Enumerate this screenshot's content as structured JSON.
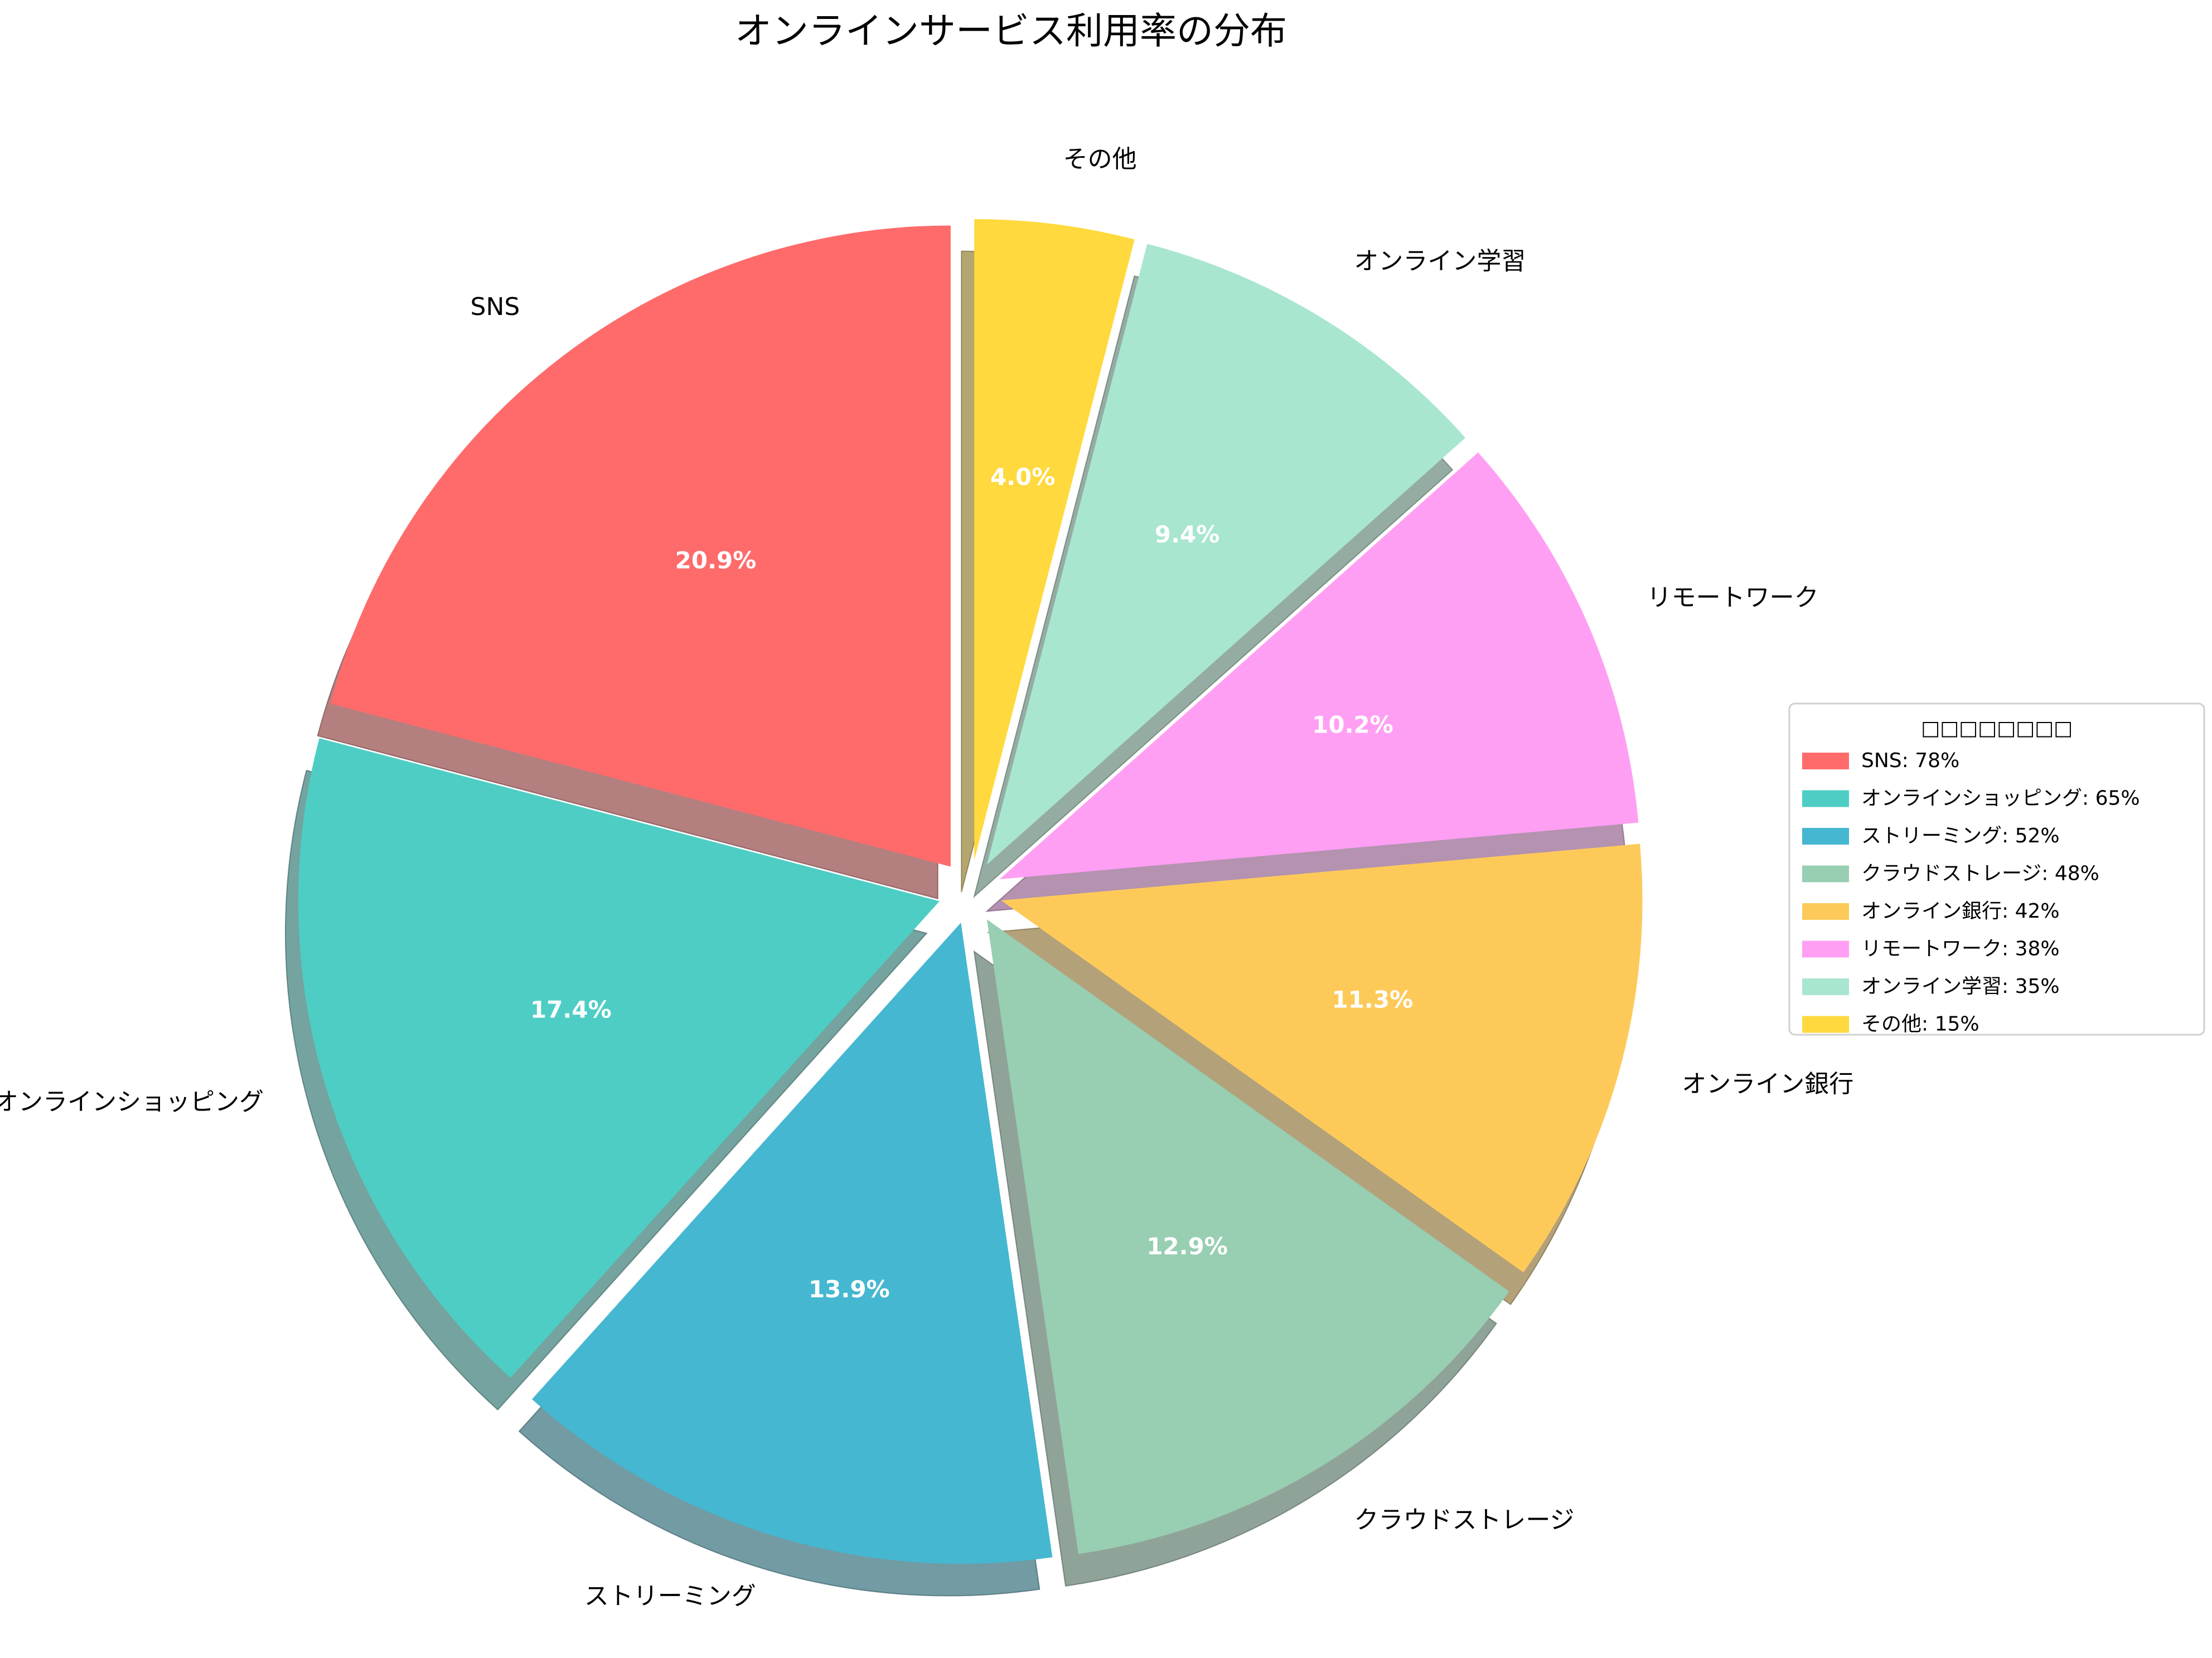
{
  "chart_data": {
    "type": "pie",
    "title": "オンラインサービス利用率の分布",
    "unit": "%",
    "start_angle_deg": 90,
    "direction": "counterclockwise",
    "shadow": true,
    "exploded": true,
    "legend": {
      "title": "□□□□□□□□",
      "placement": "right"
    },
    "slices": [
      {
        "label": "SNS",
        "value": 78,
        "pct_label": "20.9%",
        "legend_label": "SNS: 78%",
        "color": "#FF6B6B"
      },
      {
        "label": "オンラインショッピング",
        "value": 65,
        "pct_label": "17.4%",
        "legend_label": "オンラインショッピング: 65%",
        "color": "#4ECDC4"
      },
      {
        "label": "ストリーミング",
        "value": 52,
        "pct_label": "13.9%",
        "legend_label": "ストリーミング: 52%",
        "color": "#45B7D1"
      },
      {
        "label": "クラウドストレージ",
        "value": 48,
        "pct_label": "12.9%",
        "legend_label": "クラウドストレージ: 48%",
        "color": "#98CEB2"
      },
      {
        "label": "オンライン銀行",
        "value": 42,
        "pct_label": "11.3%",
        "legend_label": "オンライン銀行: 42%",
        "color": "#FDCA5A"
      },
      {
        "label": "リモートワーク",
        "value": 38,
        "pct_label": "10.2%",
        "legend_label": "リモートワーク: 38%",
        "color": "#FF9FF3"
      },
      {
        "label": "オンライン学習",
        "value": 35,
        "pct_label": "9.4%",
        "legend_label": "オンライン学習: 35%",
        "color": "#A8E6CF"
      },
      {
        "label": "その他",
        "value": 15,
        "pct_label": "4.0%",
        "legend_label": "その他: 15%",
        "color": "#FFD93D"
      }
    ]
  }
}
